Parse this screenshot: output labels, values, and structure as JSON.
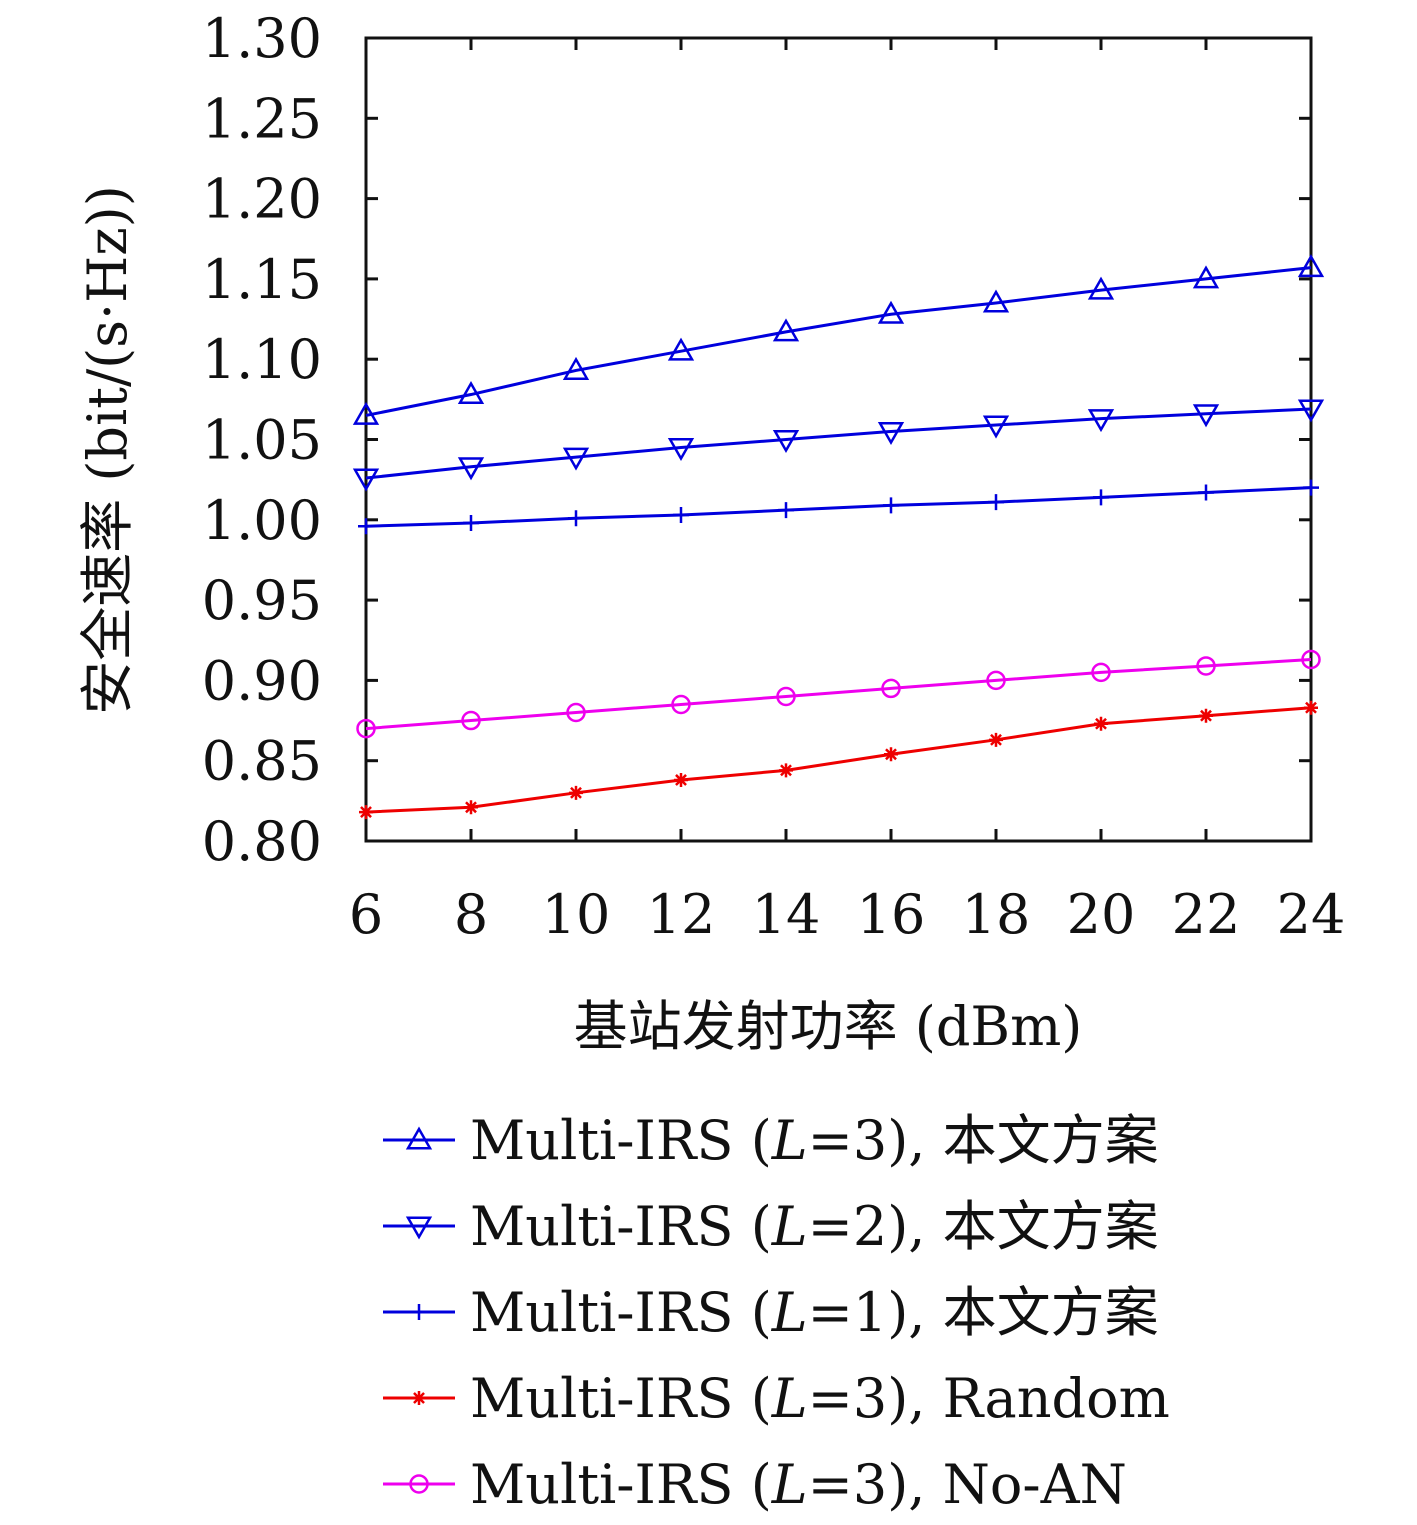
{
  "chart_data": {
    "type": "line",
    "xlabel": "基站发射功率 (dBm)",
    "ylabel": "安全速率 (bit/(s·Hz))",
    "x": [
      6,
      8,
      10,
      12,
      14,
      16,
      18,
      20,
      22,
      24
    ],
    "xticks": [
      "6",
      "8",
      "10",
      "12",
      "14",
      "16",
      "18",
      "20",
      "22",
      "24"
    ],
    "xlim": [
      6,
      24
    ],
    "ylim": [
      0.8,
      1.3
    ],
    "yticks": [
      "0.80",
      "0.85",
      "0.90",
      "0.95",
      "1.00",
      "1.05",
      "1.10",
      "1.15",
      "1.20",
      "1.25",
      "1.30"
    ],
    "grid": false,
    "legend_position": "bottom",
    "series": [
      {
        "name": "Multi-IRS (L=3), 本文方案",
        "name_parts": [
          "Multi-IRS (",
          "L",
          "=3), 本文方案"
        ],
        "color": "#0000dd",
        "marker": "triangle-up",
        "values": [
          1.065,
          1.078,
          1.093,
          1.105,
          1.117,
          1.128,
          1.135,
          1.143,
          1.15,
          1.157
        ]
      },
      {
        "name": "Multi-IRS (L=2), 本文方案",
        "name_parts": [
          "Multi-IRS (",
          "L",
          "=2), 本文方案"
        ],
        "color": "#0000dd",
        "marker": "triangle-down",
        "values": [
          1.026,
          1.033,
          1.039,
          1.045,
          1.05,
          1.055,
          1.059,
          1.063,
          1.066,
          1.069
        ]
      },
      {
        "name": "Multi-IRS (L=1), 本文方案",
        "name_parts": [
          "Multi-IRS (",
          "L",
          "=1), 本文方案"
        ],
        "color": "#0000dd",
        "marker": "plus",
        "values": [
          0.996,
          0.998,
          1.001,
          1.003,
          1.006,
          1.009,
          1.011,
          1.014,
          1.017,
          1.02
        ]
      },
      {
        "name": "Multi-IRS (L=3), Random",
        "name_parts": [
          "Multi-IRS (",
          "L",
          "=3), Random"
        ],
        "color": "#ee0000",
        "marker": "asterisk",
        "values": [
          0.818,
          0.821,
          0.83,
          0.838,
          0.844,
          0.854,
          0.863,
          0.873,
          0.878,
          0.883
        ]
      },
      {
        "name": "Multi-IRS (L=3), No-AN",
        "name_parts": [
          "Multi-IRS (",
          "L",
          "=3), No-AN"
        ],
        "color": "#ee00ee",
        "marker": "circle",
        "values": [
          0.87,
          0.875,
          0.88,
          0.885,
          0.89,
          0.895,
          0.9,
          0.905,
          0.909,
          0.913
        ]
      }
    ]
  }
}
